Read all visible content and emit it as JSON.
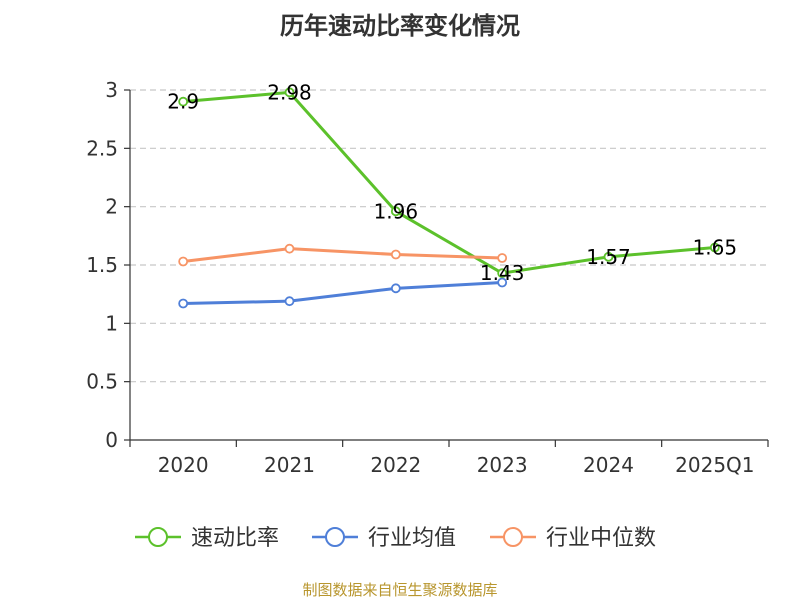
{
  "chart_data": {
    "type": "line",
    "title": "历年速动比率变化情况",
    "categories": [
      "2020",
      "2021",
      "2022",
      "2023",
      "2024",
      "2025Q1"
    ],
    "ylim": [
      0,
      3
    ],
    "yticks": [
      "0",
      "0.5",
      "1",
      "1.5",
      "2",
      "2.5",
      "3"
    ],
    "grid": true,
    "legend_position": "bottom",
    "series": [
      {
        "name": "速动比率",
        "color": "#5cc12b",
        "values": [
          2.9,
          2.98,
          1.96,
          1.43,
          1.57,
          1.65
        ],
        "labels": [
          "2.9",
          "2.98",
          "1.96",
          "1.43",
          "1.57",
          "1.65"
        ]
      },
      {
        "name": "行业均值",
        "color": "#4f7fd8",
        "values": [
          1.17,
          1.19,
          1.3,
          1.35,
          null,
          null
        ]
      },
      {
        "name": "行业中位数",
        "color": "#f79465",
        "values": [
          1.53,
          1.64,
          1.59,
          1.56,
          null,
          null
        ]
      }
    ],
    "source": "制图数据来自恒生聚源数据库"
  }
}
